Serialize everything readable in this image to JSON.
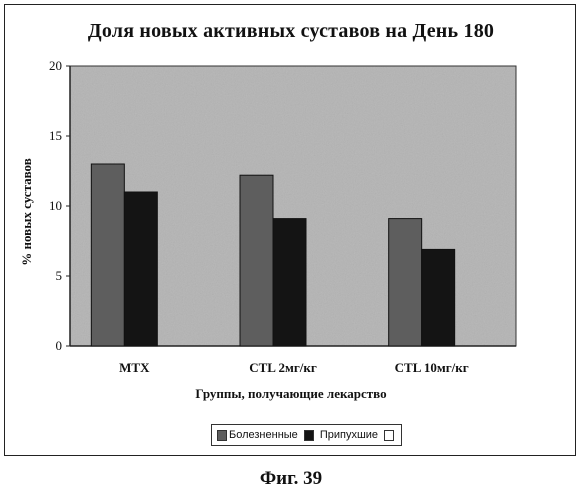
{
  "chart_data": {
    "type": "bar",
    "title": "Доля новых активных суставов на День 180",
    "xlabel": "Группы, получающие лекарство",
    "ylabel": "% новых суставов",
    "categories": [
      "MTX",
      "CTL 2мг/кг",
      "CTL 10мг/кг"
    ],
    "series": [
      {
        "name": "Болезненные",
        "values": [
          13,
          12.2,
          9.1
        ],
        "color": "#5e5e5e"
      },
      {
        "name": "Припухшие",
        "values": [
          11,
          9.1,
          6.9
        ],
        "color": "#141414"
      }
    ],
    "ylim": [
      0,
      20
    ],
    "yticks": [
      "0",
      "5",
      "10",
      "15",
      "20"
    ],
    "grid": false,
    "legend_position": "bottom",
    "plot_background": "#b4b4b4"
  },
  "legend": {
    "items": [
      {
        "label": "Болезненные",
        "color": "#5e5e5e"
      },
      {
        "label": "Припухшие",
        "color": "#ffffff"
      }
    ]
  },
  "caption": "Фиг. 39"
}
